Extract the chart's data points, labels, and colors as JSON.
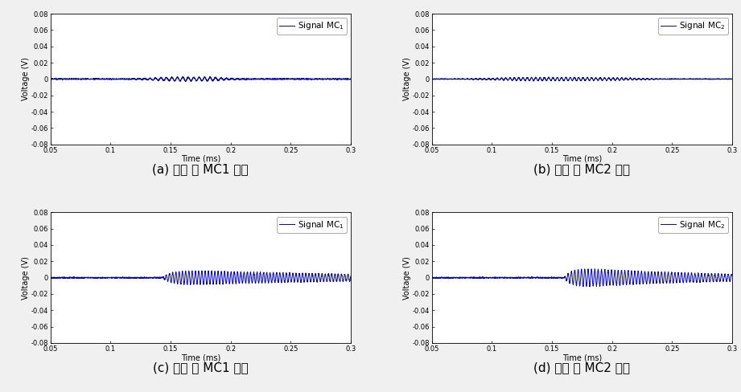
{
  "xlim": [
    0.05,
    0.3
  ],
  "ylim": [
    -0.08,
    0.08
  ],
  "yticks": [
    -0.08,
    -0.06,
    -0.04,
    -0.02,
    0,
    0.02,
    0.04,
    0.06,
    0.08
  ],
  "xticks": [
    0.05,
    0.1,
    0.15,
    0.2,
    0.25,
    0.3
  ],
  "xtick_labels": [
    "0.05",
    "0.1",
    "0.15",
    "0.2",
    "0.25",
    "0.3"
  ],
  "ytick_labels": [
    "-0.08",
    "-0.06",
    "-0.04",
    "-0.02",
    "0",
    "0.02",
    "0.04",
    "0.06",
    "0.08"
  ],
  "xlabel": "Time (ms)",
  "ylabel": "Voltage (V)",
  "line_color": "#0000CC",
  "line_width": 0.7,
  "captions": [
    "(a) 손상 전 MC1 신호",
    "(b) 손상 전 MC2 신호",
    "(c) 손상 후 MC1 신호",
    "(d) 손상 후 MC2 신호"
  ],
  "legend_labels": [
    "Signal MC$_1$",
    "Signal MC$_2$",
    "Signal MC$_1$",
    "Signal MC$_2$"
  ],
  "bg_color": "#ffffff",
  "fig_bg_color": "#f0f0f0",
  "tick_fontsize": 6.0,
  "label_fontsize": 7.0,
  "legend_fontsize": 7.5,
  "caption_fontsize": 11.0
}
